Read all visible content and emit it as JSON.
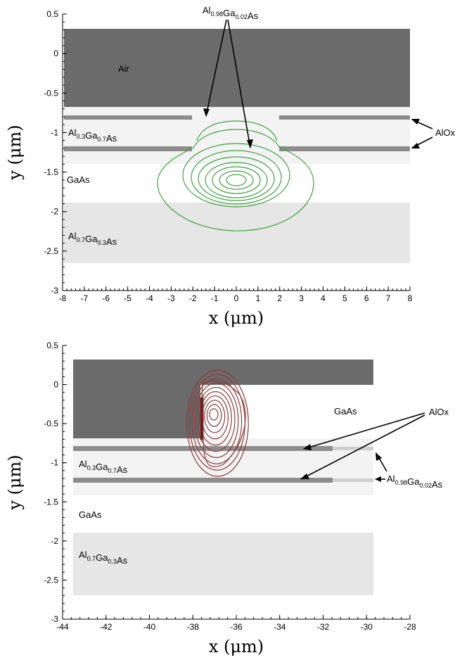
{
  "panels": [
    {
      "id": "top",
      "xlim": [
        -8,
        8
      ],
      "ylim": [
        -3,
        0.5
      ],
      "xticks": [
        -8,
        -7,
        -6,
        -5,
        -4,
        -3,
        -2,
        -1,
        0,
        1,
        2,
        3,
        4,
        5,
        6,
        7,
        8
      ],
      "yticks": [
        0.5,
        0,
        -0.5,
        -1,
        -1.5,
        -2,
        -2.5,
        -3
      ],
      "xlabel": "x (μm)",
      "ylabel": "y (μm)",
      "labels": {
        "air": "Air",
        "algaas_03": "Al0.3Ga0.7As",
        "gaas": "GaAs",
        "algaas_07": "Al0.7Ga0.3As",
        "alox": "AlOx",
        "al098": "Al0.98Ga0.02As"
      },
      "colors": {
        "contour": "#3fa23f",
        "air": "#6b6b6b",
        "oxide": "#8c8c8c"
      }
    },
    {
      "id": "bottom",
      "xlim": [
        -44,
        -28
      ],
      "ylim": [
        -3,
        0.5
      ],
      "xticks": [
        -44,
        -42,
        -40,
        -38,
        -36,
        -34,
        -32,
        -30,
        -28
      ],
      "yticks": [
        0.5,
        0,
        -0.5,
        -1,
        -1.5,
        -2,
        -2.5,
        -3
      ],
      "xlabel": "x (μm)",
      "ylabel": "y (μm)",
      "labels": {
        "gaas_top": "GaAs",
        "algaas_03": "Al0.3Ga0.7As",
        "gaas": "GaAs",
        "algaas_07": "Al0.7Ga0.3As",
        "alox": "AlOx",
        "al098": "Al0.98Ga0.02As"
      },
      "colors": {
        "contour": "#8b3a3a",
        "air": "#6b6b6b",
        "oxide": "#8c8c8c"
      }
    }
  ]
}
